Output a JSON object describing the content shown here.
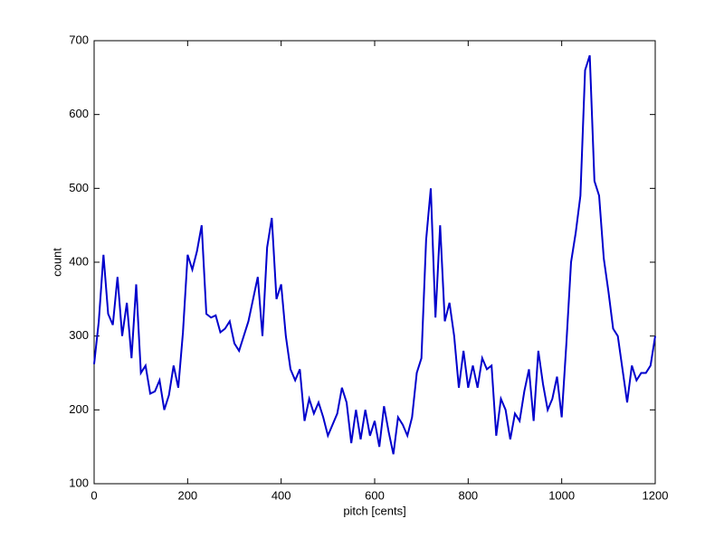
{
  "chart_data": {
    "type": "line",
    "xlabel": "pitch [cents]",
    "ylabel": "count",
    "x": [
      0,
      10,
      20,
      30,
      40,
      50,
      60,
      70,
      80,
      90,
      100,
      110,
      120,
      130,
      140,
      150,
      160,
      170,
      180,
      190,
      200,
      210,
      220,
      230,
      240,
      250,
      260,
      270,
      280,
      290,
      300,
      310,
      320,
      330,
      340,
      350,
      360,
      370,
      380,
      390,
      400,
      410,
      420,
      430,
      440,
      450,
      460,
      470,
      480,
      490,
      500,
      510,
      520,
      530,
      540,
      550,
      560,
      570,
      580,
      590,
      600,
      610,
      620,
      630,
      640,
      650,
      660,
      670,
      680,
      690,
      700,
      710,
      720,
      730,
      740,
      750,
      760,
      770,
      780,
      790,
      800,
      810,
      820,
      830,
      840,
      850,
      860,
      870,
      880,
      890,
      900,
      910,
      920,
      930,
      940,
      950,
      960,
      970,
      980,
      990,
      1000,
      1010,
      1020,
      1030,
      1040,
      1050,
      1060,
      1070,
      1080,
      1090,
      1100,
      1110,
      1120,
      1130,
      1140,
      1150,
      1160,
      1170,
      1180,
      1190,
      1200
    ],
    "series": [
      {
        "name": "count",
        "color": "#0000cc",
        "values": [
          262,
          320,
          410,
          330,
          315,
          380,
          300,
          345,
          270,
          370,
          250,
          260,
          222,
          225,
          240,
          200,
          220,
          260,
          230,
          305,
          410,
          390,
          415,
          450,
          330,
          325,
          328,
          305,
          310,
          320,
          290,
          280,
          300,
          320,
          350,
          380,
          300,
          420,
          460,
          350,
          370,
          300,
          255,
          240,
          255,
          185,
          215,
          195,
          210,
          190,
          165,
          180,
          195,
          230,
          210,
          155,
          200,
          160,
          200,
          165,
          185,
          150,
          205,
          170,
          140,
          190,
          180,
          165,
          190,
          250,
          270,
          430,
          500,
          325,
          450,
          320,
          345,
          300,
          230,
          280,
          230,
          260,
          230,
          270,
          255,
          260,
          165,
          215,
          200,
          160,
          195,
          185,
          225,
          255,
          185,
          280,
          235,
          200,
          215,
          245,
          190,
          290,
          400,
          440,
          490,
          660,
          680,
          510,
          490,
          405,
          360,
          310,
          300,
          255,
          210,
          260,
          240,
          250,
          250,
          260,
          300
        ]
      }
    ],
    "xlim": [
      0,
      1200
    ],
    "ylim": [
      100,
      700
    ],
    "xticks": [
      0,
      200,
      400,
      600,
      800,
      1000,
      1200
    ],
    "yticks": [
      100,
      200,
      300,
      400,
      500,
      600,
      700
    ]
  }
}
